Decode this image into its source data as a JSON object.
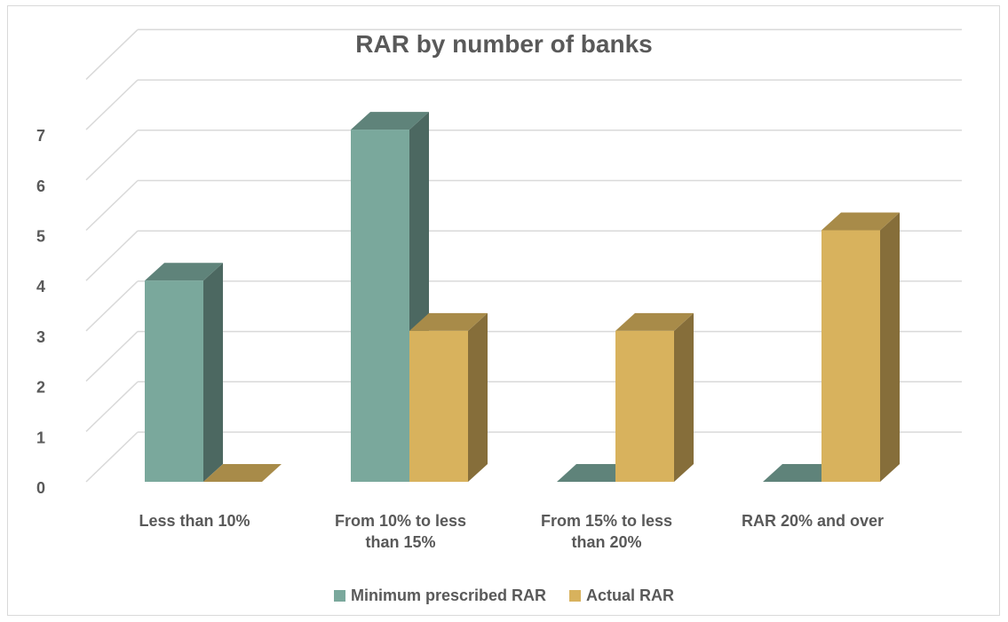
{
  "chart_data": {
    "type": "bar",
    "title": "RAR by number of banks",
    "xlabel": "",
    "ylabel": "",
    "ylim": [
      0,
      7
    ],
    "yticks": [
      "0",
      "1",
      "2",
      "3",
      "4",
      "5",
      "6",
      "7"
    ],
    "categories": [
      "Less than 10%",
      "From 10% to less than 15%",
      "From 15% to less than 20%",
      "RAR 20% and over"
    ],
    "series": [
      {
        "name": "Minimum prescribed RAR",
        "values": [
          4,
          7,
          0,
          0
        ],
        "color": "#7aa89c"
      },
      {
        "name": "Actual RAR",
        "values": [
          0,
          3,
          3,
          5
        ],
        "color": "#d8b25d"
      }
    ],
    "grid": true,
    "legend": "bottom",
    "style": "3d-column"
  }
}
